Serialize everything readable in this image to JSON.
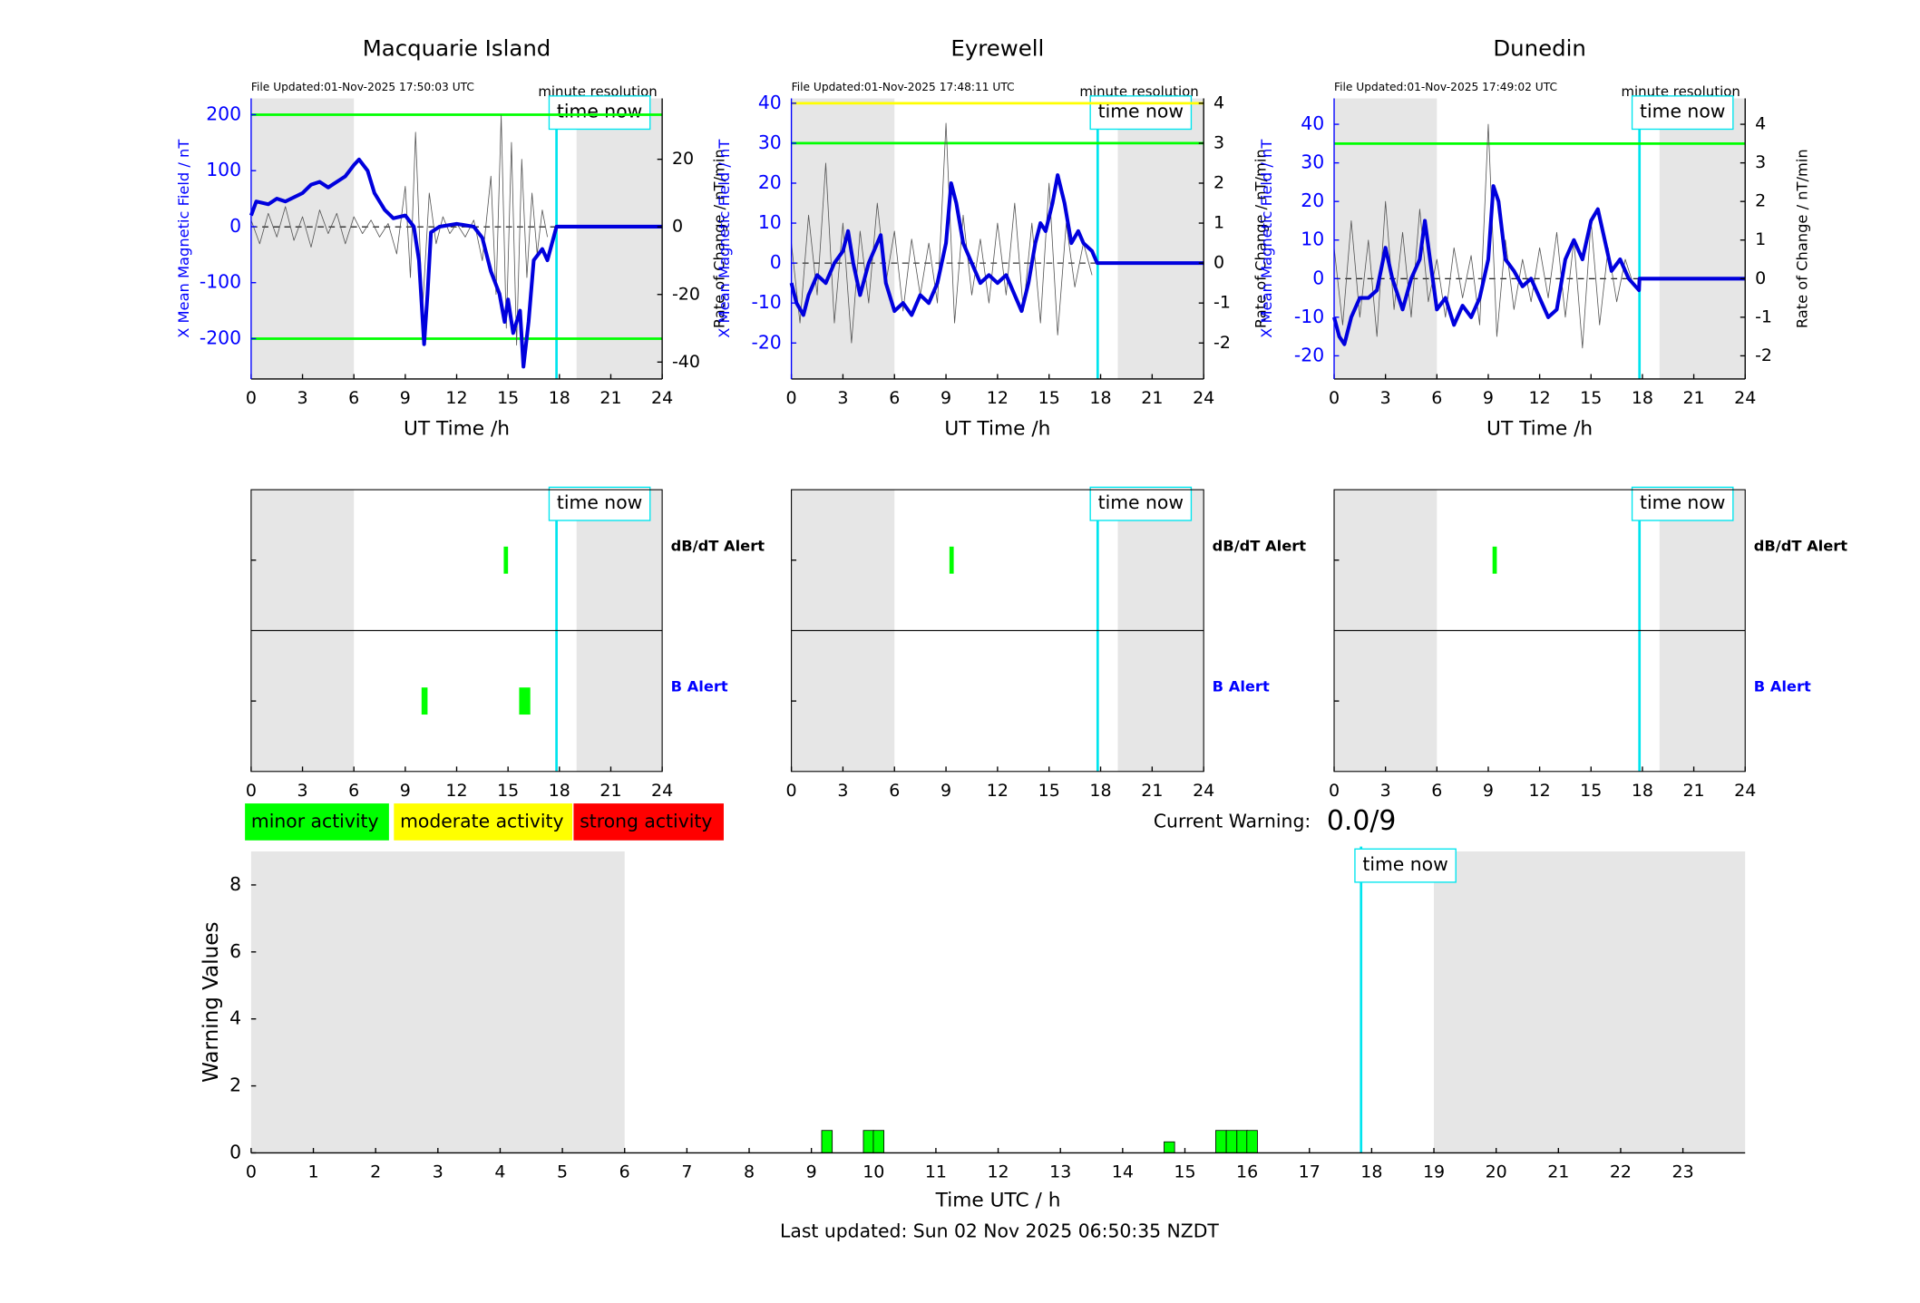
{
  "chart_data": [
    {
      "type": "line",
      "title": "Macquarie Island",
      "file_updated": "File Updated:01-Nov-2025 17:50:03 UTC",
      "resolution": "minute resolution",
      "xlabel": "UT Time /h",
      "ylabel": "X Mean Magnetic Field / nT",
      "y2label": "Rate of Change / nT/min",
      "ycolor": "#0000ff",
      "xlim": [
        0,
        24
      ],
      "xticks": [
        0,
        3,
        6,
        9,
        12,
        15,
        18,
        21,
        24
      ],
      "ylim": [
        -272,
        229
      ],
      "yticks": [
        -200,
        -100,
        0,
        100,
        200
      ],
      "y2lim": [
        -45,
        38
      ],
      "y2ticks": [
        -40,
        -20,
        0,
        20
      ],
      "shaded": [
        [
          0,
          6
        ],
        [
          19,
          24
        ]
      ],
      "thresholds": [
        {
          "value": 200,
          "color": "#00ff00"
        },
        {
          "value": -200,
          "color": "#00ff00"
        }
      ],
      "time_now": {
        "label": "time now",
        "x": 17.83
      },
      "series": [
        {
          "color": "#555555",
          "axis": "y2",
          "width": 0.6,
          "x": [
            0,
            0.5,
            1,
            1.5,
            2,
            2.5,
            3,
            3.5,
            4,
            4.5,
            5,
            5.5,
            6,
            6.5,
            7,
            7.5,
            8,
            8.5,
            9,
            9.3,
            9.6,
            10,
            10.4,
            10.8,
            11.2,
            11.6,
            12,
            12.5,
            13,
            13.5,
            14,
            14.3,
            14.6,
            14.9,
            15.2,
            15.5,
            15.8,
            16.1,
            16.4,
            16.7,
            17,
            17.3
          ],
          "values": [
            2,
            -5,
            4,
            -3,
            6,
            -4,
            3,
            -6,
            5,
            -2,
            4,
            -5,
            3,
            -2,
            2,
            -3,
            1,
            -8,
            12,
            -15,
            28,
            -25,
            10,
            -5,
            3,
            -2,
            1,
            -3,
            2,
            -10,
            15,
            -20,
            33,
            -30,
            25,
            -35,
            20,
            -15,
            10,
            -8,
            5,
            -3
          ]
        },
        {
          "color": "#0000dd",
          "axis": "y",
          "width": 3,
          "x": [
            0,
            0.3,
            1,
            1.5,
            2,
            3,
            3.5,
            4,
            4.5,
            5,
            5.5,
            6,
            6.3,
            6.8,
            7.2,
            7.8,
            8.3,
            9,
            9.5,
            9.8,
            10.1,
            10.3,
            10.5,
            11,
            12,
            13,
            13.5,
            14,
            14.5,
            14.8,
            15,
            15.3,
            15.7,
            15.9,
            16.2,
            16.5,
            17,
            17.3,
            17.83,
            24
          ],
          "values": [
            20,
            45,
            40,
            50,
            45,
            60,
            75,
            80,
            70,
            80,
            90,
            110,
            120,
            100,
            60,
            30,
            15,
            20,
            0,
            -60,
            -210,
            -120,
            -10,
            0,
            5,
            0,
            -20,
            -80,
            -120,
            -170,
            -130,
            -190,
            -150,
            -250,
            -170,
            -60,
            -40,
            -60,
            0,
            0
          ]
        }
      ]
    },
    {
      "type": "line",
      "title": "Eyrewell",
      "file_updated": "File Updated:01-Nov-2025 17:48:11 UTC",
      "resolution": "minute resolution",
      "xlabel": "UT Time /h",
      "ylabel": "X Mean Magnetic Field / nT",
      "y2label": "Rate of Change / nT/min",
      "ycolor": "#0000ff",
      "xlim": [
        0,
        24
      ],
      "xticks": [
        0,
        3,
        6,
        9,
        12,
        15,
        18,
        21,
        24
      ],
      "ylim": [
        -29,
        41.2
      ],
      "yticks": [
        -20,
        -10,
        0,
        10,
        20,
        30,
        40
      ],
      "y2lim": [
        -2.9,
        4.12
      ],
      "y2ticks": [
        -2,
        -1,
        0,
        1,
        2,
        3,
        4
      ],
      "shaded": [
        [
          0,
          6
        ],
        [
          19,
          24
        ]
      ],
      "thresholds": [
        {
          "value": 40,
          "color": "#ffff00"
        },
        {
          "value": 30,
          "color": "#00ff00"
        }
      ],
      "time_now": {
        "label": "time now",
        "x": 17.83
      },
      "series": [
        {
          "color": "#555555",
          "axis": "y2",
          "width": 0.6,
          "x": [
            0,
            0.5,
            1,
            1.5,
            2,
            2.5,
            3,
            3.5,
            4,
            4.5,
            5,
            5.5,
            6,
            6.5,
            7,
            7.5,
            8,
            8.5,
            9,
            9.5,
            10,
            10.5,
            11,
            11.5,
            12,
            12.5,
            13,
            13.5,
            14,
            14.5,
            15,
            15.5,
            16,
            16.5,
            17,
            17.5
          ],
          "values": [
            0.5,
            -1.5,
            1.2,
            -0.8,
            2.5,
            -1.5,
            1,
            -2,
            0.8,
            -1,
            1.5,
            -0.5,
            0.8,
            -1.2,
            0.6,
            -0.8,
            0.5,
            -1,
            3.5,
            -1.5,
            1.2,
            -0.8,
            0.6,
            -1,
            1,
            -0.8,
            1.5,
            -1.2,
            1,
            -1.5,
            2,
            -1.8,
            1,
            -0.6,
            0.5,
            -0.3
          ]
        },
        {
          "color": "#0000dd",
          "axis": "y",
          "width": 3,
          "x": [
            0,
            0.3,
            0.7,
            1,
            1.5,
            2,
            2.5,
            3,
            3.3,
            3.6,
            4,
            4.5,
            5,
            5.2,
            5.5,
            6,
            6.5,
            7,
            7.5,
            8,
            8.5,
            9,
            9.3,
            9.6,
            10,
            10.5,
            11,
            11.5,
            12,
            12.5,
            13,
            13.4,
            13.8,
            14.2,
            14.5,
            14.8,
            15.2,
            15.5,
            15.9,
            16.3,
            16.7,
            17,
            17.5,
            17.8,
            24
          ],
          "values": [
            -5,
            -10,
            -13,
            -8,
            -3,
            -5,
            0,
            3,
            8,
            0,
            -8,
            0,
            5,
            7,
            -5,
            -12,
            -10,
            -13,
            -8,
            -10,
            -5,
            5,
            20,
            15,
            5,
            0,
            -5,
            -3,
            -5,
            -3,
            -8,
            -12,
            -5,
            5,
            10,
            8,
            15,
            22,
            15,
            5,
            8,
            5,
            3,
            0,
            0
          ]
        }
      ]
    },
    {
      "type": "line",
      "title": "Dunedin",
      "file_updated": "File Updated:01-Nov-2025 17:49:02 UTC",
      "resolution": "minute resolution",
      "xlabel": "UT Time /h",
      "ylabel": "X Mean Magnetic Field / nT",
      "y2label": "Rate of Change / nT/min",
      "ycolor": "#0000ff",
      "xlim": [
        0,
        24
      ],
      "xticks": [
        0,
        3,
        6,
        9,
        12,
        15,
        18,
        21,
        24
      ],
      "ylim": [
        -26,
        46.7
      ],
      "yticks": [
        -20,
        -10,
        0,
        10,
        20,
        30,
        40
      ],
      "y2lim": [
        -2.6,
        4.67
      ],
      "y2ticks": [
        -2,
        -1,
        0,
        1,
        2,
        3,
        4
      ],
      "shaded": [
        [
          0,
          6
        ],
        [
          19,
          24
        ]
      ],
      "thresholds": [
        {
          "value": 35,
          "color": "#00ff00"
        }
      ],
      "time_now": {
        "label": "time now",
        "x": 17.83
      },
      "series": [
        {
          "color": "#555555",
          "axis": "y2",
          "width": 0.6,
          "x": [
            0,
            0.5,
            1,
            1.5,
            2,
            2.5,
            3,
            3.5,
            4,
            4.5,
            5,
            5.5,
            6,
            6.5,
            7,
            7.5,
            8,
            8.5,
            9,
            9.5,
            10,
            10.5,
            11,
            11.5,
            12,
            12.5,
            13,
            13.5,
            14,
            14.5,
            15,
            15.5,
            16,
            16.5,
            17,
            17.5
          ],
          "values": [
            0.8,
            -1.2,
            1.5,
            -1,
            1,
            -1.5,
            2,
            -0.8,
            1.2,
            -1,
            1.8,
            -0.6,
            0.5,
            -1,
            0.8,
            -0.5,
            0.6,
            -1.2,
            4,
            -1.5,
            1,
            -0.8,
            0.5,
            -0.6,
            0.8,
            -0.5,
            1.2,
            -1,
            1,
            -1.8,
            1.5,
            -1.2,
            0.8,
            -0.6,
            0.5,
            -0.2
          ]
        },
        {
          "color": "#0000dd",
          "axis": "y",
          "width": 3,
          "x": [
            0,
            0.3,
            0.6,
            1,
            1.5,
            2,
            2.5,
            3,
            3.4,
            4,
            4.5,
            5,
            5.3,
            5.6,
            6,
            6.5,
            7,
            7.5,
            8,
            8.5,
            9,
            9.3,
            9.6,
            10,
            10.5,
            11,
            11.5,
            12,
            12.5,
            13,
            13.5,
            14,
            14.5,
            15,
            15.4,
            15.8,
            16.2,
            16.7,
            17.2,
            17.8,
            17.83,
            24
          ],
          "values": [
            -10,
            -15,
            -17,
            -10,
            -5,
            -5,
            -3,
            8,
            0,
            -8,
            0,
            5,
            15,
            5,
            -8,
            -5,
            -12,
            -7,
            -10,
            -5,
            5,
            24,
            20,
            5,
            2,
            -2,
            0,
            -5,
            -10,
            -8,
            5,
            10,
            5,
            15,
            18,
            10,
            2,
            5,
            0,
            -3,
            0,
            0
          ]
        }
      ]
    },
    {
      "type": "alert",
      "xlim": [
        0,
        24
      ],
      "xticks": [
        0,
        3,
        6,
        9,
        12,
        15,
        18,
        21,
        24
      ],
      "shaded": [
        [
          0,
          6
        ],
        [
          19,
          24
        ]
      ],
      "alert_color": "#00ff00",
      "time_now": {
        "label": "time now",
        "x": 17.83
      },
      "rows": [
        {
          "name": "dB/dT Alert",
          "color": "#000000",
          "alerts": [
            {
              "start": 14.75,
              "end": 15.0
            }
          ]
        },
        {
          "name": "B Alert",
          "color": "#0000ff",
          "alerts": [
            {
              "start": 9.95,
              "end": 10.3
            },
            {
              "start": 15.65,
              "end": 16.3
            }
          ]
        }
      ]
    },
    {
      "type": "alert",
      "xlim": [
        0,
        24
      ],
      "xticks": [
        0,
        3,
        6,
        9,
        12,
        15,
        18,
        21,
        24
      ],
      "shaded": [
        [
          0,
          6
        ],
        [
          19,
          24
        ]
      ],
      "alert_color": "#00ff00",
      "time_now": {
        "label": "time now",
        "x": 17.83
      },
      "rows": [
        {
          "name": "dB/dT Alert",
          "color": "#000000",
          "alerts": [
            {
              "start": 9.2,
              "end": 9.45
            }
          ]
        },
        {
          "name": "B Alert",
          "color": "#0000ff",
          "alerts": []
        }
      ]
    },
    {
      "type": "alert",
      "xlim": [
        0,
        24
      ],
      "xticks": [
        0,
        3,
        6,
        9,
        12,
        15,
        18,
        21,
        24
      ],
      "shaded": [
        [
          0,
          6
        ],
        [
          19,
          24
        ]
      ],
      "alert_color": "#00ff00",
      "time_now": {
        "label": "time now",
        "x": 17.83
      },
      "rows": [
        {
          "name": "dB/dT Alert",
          "color": "#000000",
          "alerts": [
            {
              "start": 9.25,
              "end": 9.5
            }
          ]
        },
        {
          "name": "B Alert",
          "color": "#0000ff",
          "alerts": []
        }
      ]
    },
    {
      "type": "bar",
      "xlabel": "Time UTC / h",
      "ylabel": "Warning Values",
      "color": "#00ff00",
      "xlim": [
        0,
        24
      ],
      "xticks": [
        0,
        1,
        2,
        3,
        4,
        5,
        6,
        7,
        8,
        9,
        10,
        11,
        12,
        13,
        14,
        15,
        16,
        17,
        18,
        19,
        20,
        21,
        22,
        23
      ],
      "ylim": [
        0,
        9
      ],
      "yticks": [
        0,
        2,
        4,
        6,
        8
      ],
      "shaded": [
        [
          0,
          6
        ],
        [
          19,
          24
        ]
      ],
      "time_now": {
        "label": "time now",
        "x": 17.83
      },
      "x": [
        9.25,
        9.92,
        10.08,
        14.75,
        15.58,
        15.75,
        15.92,
        16.08
      ],
      "values": [
        0.67,
        0.67,
        0.67,
        0.33,
        0.67,
        0.67,
        0.67,
        0.67
      ]
    }
  ],
  "legend": [
    {
      "label": "minor activity",
      "color": "#00ff00"
    },
    {
      "label": "moderate activity",
      "color": "#ffff00"
    },
    {
      "label": "strong activity",
      "color": "#ff0000"
    }
  ],
  "current_warning": {
    "label": "Current Warning:",
    "value": "0.0/9"
  },
  "footer": "Last updated: Sun 02 Nov 2025 06:50:35 NZDT"
}
